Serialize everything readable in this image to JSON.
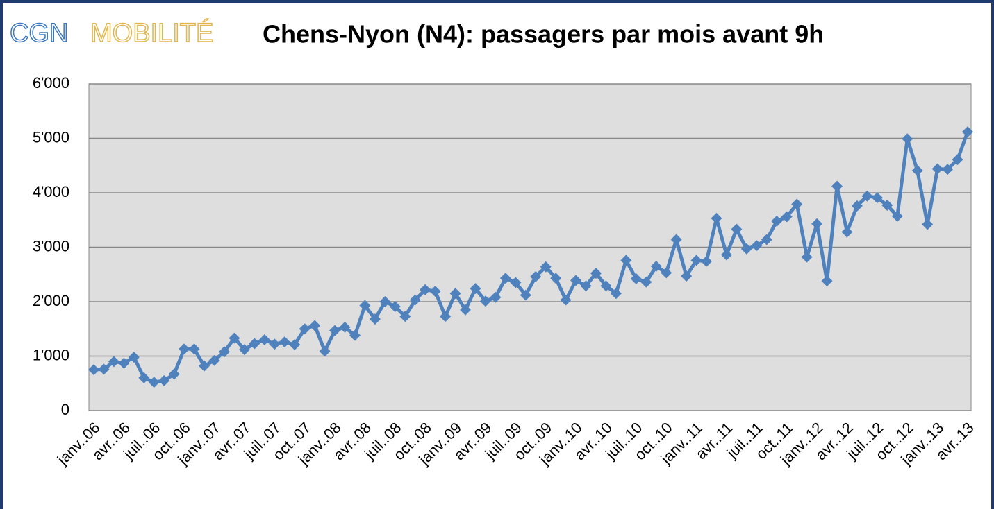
{
  "logo": {
    "left": "CGN",
    "right": "MOBILITÉ"
  },
  "chart_data": {
    "type": "line",
    "title": "Chens-Nyon (N4): passagers par mois avant 9h",
    "categories": [
      "janv..06",
      null,
      null,
      "avr..06",
      null,
      null,
      "juil..06",
      null,
      null,
      "oct..06",
      null,
      null,
      "janv..07",
      null,
      null,
      "avr..07",
      null,
      null,
      "juil..07",
      null,
      null,
      "oct..07",
      null,
      null,
      "janv..08",
      null,
      null,
      "avr..08",
      null,
      null,
      "juil..08",
      null,
      null,
      "oct..08",
      null,
      null,
      "janv..09",
      null,
      null,
      "avr..09",
      null,
      null,
      "juil..09",
      null,
      null,
      "oct..09",
      null,
      null,
      "janv..10",
      null,
      null,
      "avr..10",
      null,
      null,
      "juil..10",
      null,
      null,
      "oct..10",
      null,
      null,
      "janv..11",
      null,
      null,
      "avr..11",
      null,
      null,
      "juil..11",
      null,
      null,
      "oct..11",
      null,
      null,
      "janv..12",
      null,
      null,
      "avr..12",
      null,
      null,
      "juil..12",
      null,
      null,
      "oct..12",
      null,
      null,
      "janv..13",
      null,
      null,
      "avr..13"
    ],
    "series": [
      {
        "name": "passagers",
        "color": "#4f81bd",
        "values": [
          750,
          760,
          900,
          870,
          980,
          600,
          520,
          550,
          670,
          1130,
          1130,
          820,
          920,
          1080,
          1330,
          1120,
          1230,
          1300,
          1220,
          1260,
          1210,
          1500,
          1560,
          1090,
          1470,
          1530,
          1380,
          1930,
          1680,
          2000,
          1910,
          1730,
          2030,
          2220,
          2190,
          1730,
          2150,
          1850,
          2240,
          2010,
          2080,
          2430,
          2350,
          2120,
          2460,
          2640,
          2430,
          2030,
          2390,
          2290,
          2520,
          2290,
          2150,
          2760,
          2420,
          2360,
          2650,
          2530,
          3140,
          2470,
          2760,
          2740,
          3530,
          2860,
          3330,
          2970,
          3030,
          3140,
          3480,
          3560,
          3790,
          2820,
          3430,
          2380,
          4120,
          3280,
          3760,
          3940,
          3910,
          3770,
          3570,
          4990,
          4410,
          3420,
          4440,
          4430,
          4610,
          5120
        ]
      }
    ],
    "ylim": [
      0,
      6000
    ],
    "yticks": [
      0,
      {
        "value": 1000,
        "label": "1'000"
      },
      {
        "value": 2000,
        "label": "2'000"
      },
      {
        "value": 3000,
        "label": "3'000"
      },
      {
        "value": 4000,
        "label": "4'000"
      },
      {
        "value": 5000,
        "label": "5'000"
      },
      {
        "value": 6000,
        "label": "6'000"
      }
    ],
    "grid": true
  }
}
